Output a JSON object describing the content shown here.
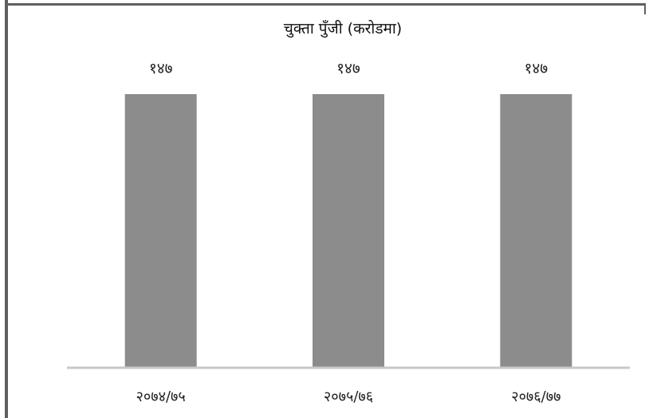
{
  "chart_data": {
    "type": "bar",
    "title": "चुक्ता पुँजी (करोडमा)",
    "categories": [
      "२०७४/७५",
      "२०७५/७६",
      "२०७६/७७"
    ],
    "values": [
      147,
      147,
      147
    ],
    "value_labels": [
      "१४७",
      "१४७",
      "१४७"
    ],
    "xlabel": "",
    "ylabel": "",
    "ylim": [
      0,
      147
    ],
    "grid": false,
    "legend": "none",
    "bar_color": "#8c8c8c",
    "axis_color": "#c8c8c8"
  }
}
